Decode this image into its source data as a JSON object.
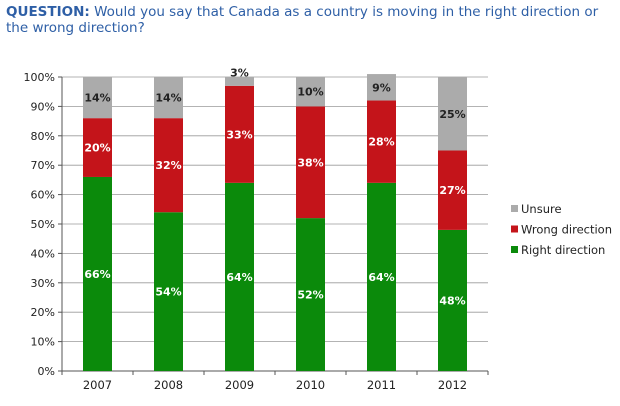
{
  "question": {
    "label": "QUESTION:",
    "text": "Would you say that Canada as a country is moving in the right direction or the wrong direction?"
  },
  "chart_data": {
    "type": "bar",
    "stacked": true,
    "categories": [
      "2007",
      "2008",
      "2009",
      "2010",
      "2011",
      "2012"
    ],
    "series": [
      {
        "name": "Right direction",
        "color": "#0b8a0b",
        "label_color": "#ffffff",
        "values": [
          66,
          54,
          64,
          52,
          64,
          48
        ]
      },
      {
        "name": "Wrong direction",
        "color": "#c4141a",
        "label_color": "#ffffff",
        "values": [
          20,
          32,
          33,
          38,
          28,
          27
        ]
      },
      {
        "name": "Unsure",
        "color": "#ababab",
        "label_color": "#222222",
        "values": [
          14,
          14,
          3,
          10,
          9,
          25
        ]
      }
    ],
    "ylim": [
      0,
      100
    ],
    "yticks": [
      "0%",
      "10%",
      "20%",
      "30%",
      "40%",
      "50%",
      "60%",
      "70%",
      "80%",
      "90%",
      "100%"
    ],
    "grid": true,
    "legend": "right",
    "legend_order": [
      "Unsure",
      "Wrong direction",
      "Right direction"
    ]
  }
}
